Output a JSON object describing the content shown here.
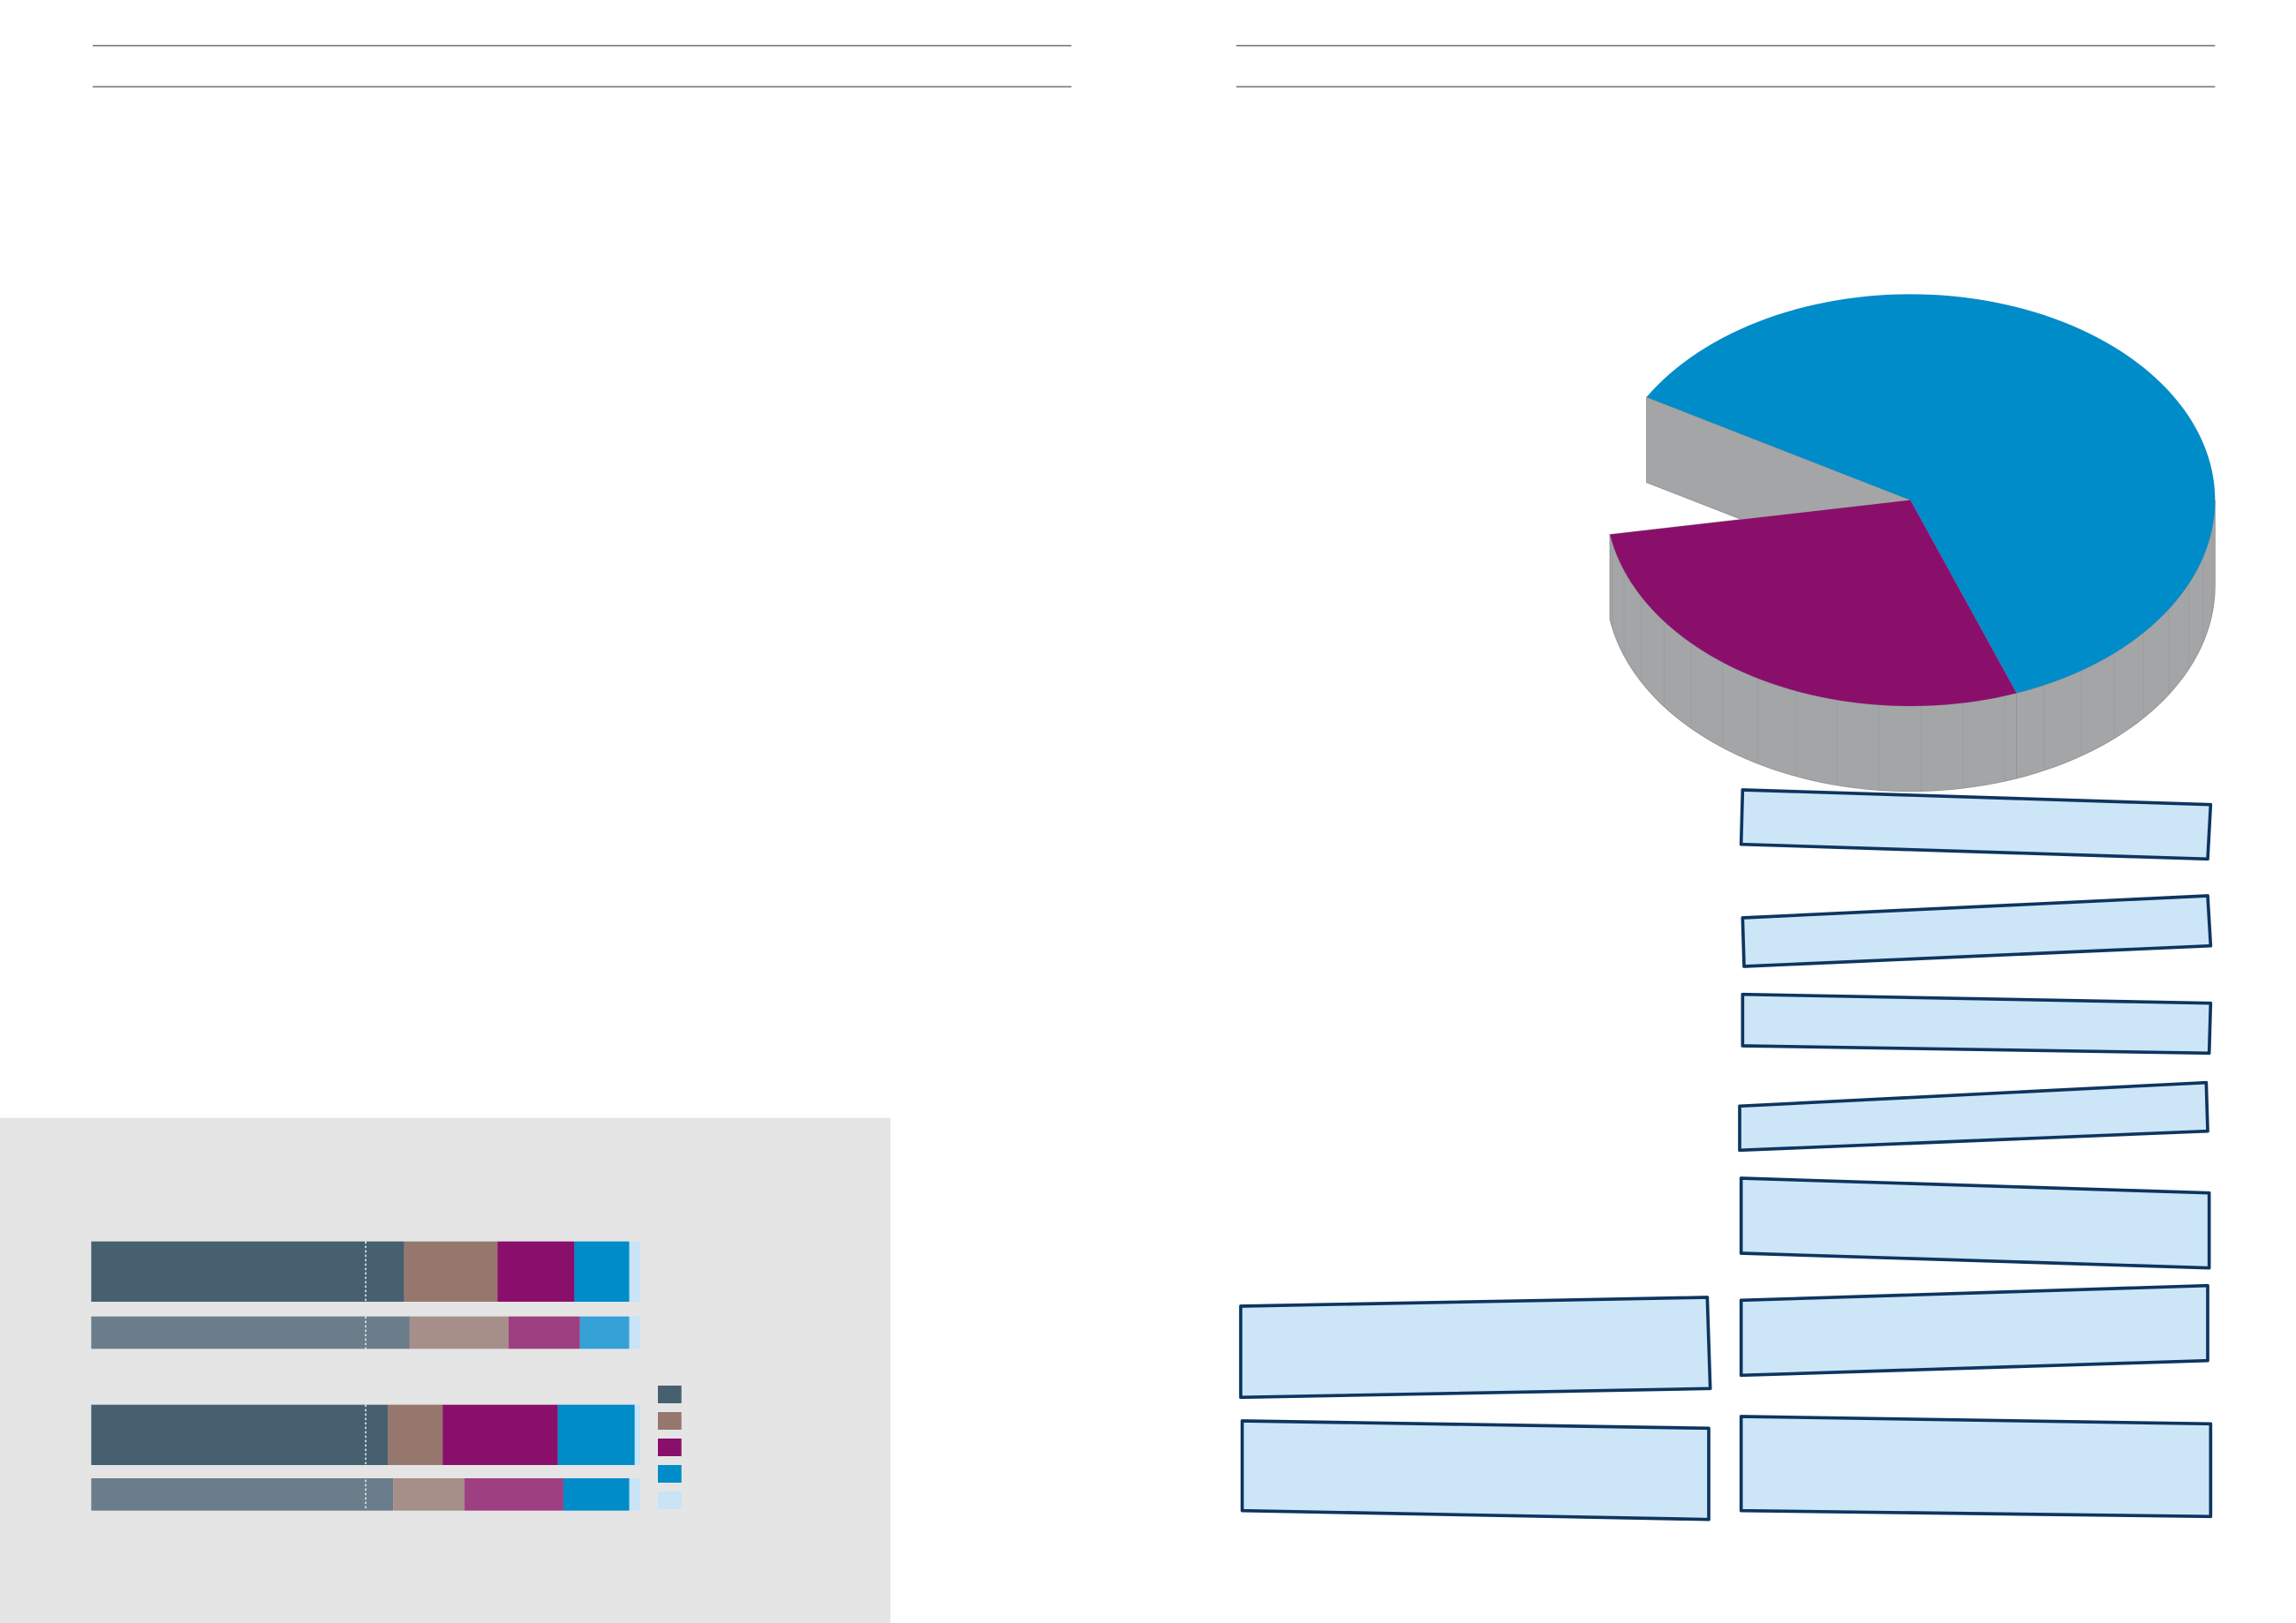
{
  "chart_data": [
    {
      "type": "bar",
      "orientation": "horizontal",
      "stacked": true,
      "categories": [
        null,
        null,
        null,
        null
      ],
      "xlim": [
        0,
        100
      ],
      "reference_line": 50,
      "series": [
        {
          "colors": [
            "#46606f",
            "#6a7d8b",
            "#46606f",
            "#6a7d8b"
          ],
          "values": [
            57,
            58,
            54,
            55
          ]
        },
        {
          "colors": [
            "#96776e",
            "#a68f88",
            "#96776e",
            "#a68f88"
          ],
          "values": [
            17,
            18,
            10,
            13
          ]
        },
        {
          "colors": [
            "#8a0f6b",
            "#9e3f82",
            "#8a0f6b",
            "#9e3f82"
          ],
          "values": [
            14,
            13,
            21,
            18
          ]
        },
        {
          "colors": [
            "#008bc9",
            "#35a1d6",
            "#008bc9",
            "#008bc9"
          ],
          "values": [
            10,
            9,
            14,
            12
          ]
        },
        {
          "colors": [
            "#c8e4f6",
            "#c8e4f6",
            "#c8e4f6",
            "#c8e4f6"
          ],
          "values": [
            2,
            2,
            1,
            2
          ]
        }
      ]
    },
    {
      "type": "pie",
      "values": [
        61,
        28,
        11
      ],
      "colors": [
        "#008bc9",
        "#8a0f6b",
        "none"
      ]
    }
  ]
}
